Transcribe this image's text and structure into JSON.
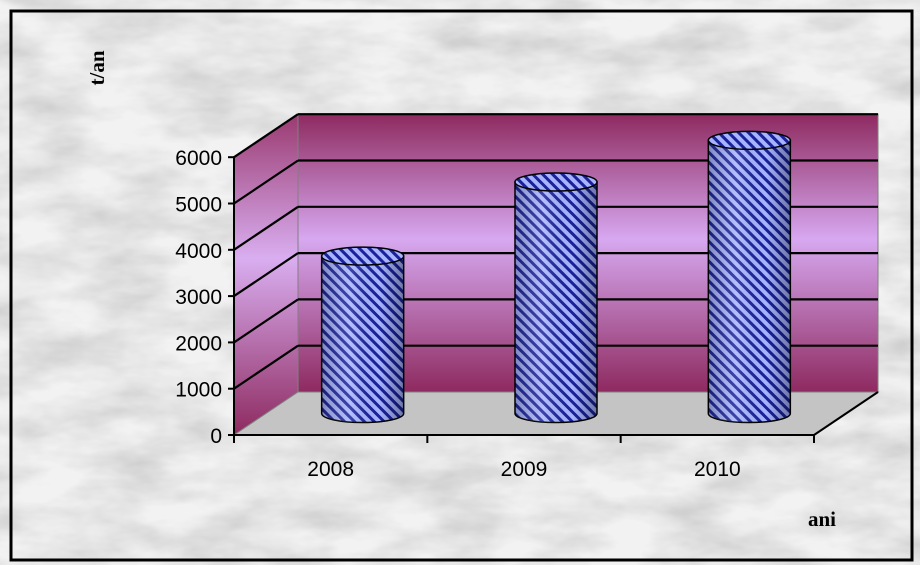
{
  "chart_data": {
    "type": "bar",
    "style": "3d-cylinder",
    "categories": [
      "2008",
      "2009",
      "2010"
    ],
    "values": [
      3400,
      5000,
      5900
    ],
    "xlabel": "ani",
    "ylabel": "t/an",
    "ylim": [
      0,
      6000
    ],
    "yticks": [
      "0",
      "1000",
      "2000",
      "3000",
      "4000",
      "5000",
      "6000"
    ],
    "grid": true,
    "legend": "none",
    "colors": {
      "bar_fill": "#a8b4ff",
      "bar_hatch": "#1a2299",
      "wall_dark": "#8e2a60",
      "wall_light": "#d7a8f0",
      "floor": "#c4c4c4",
      "border": "#000000",
      "marble": "#dcdcdc"
    }
  }
}
